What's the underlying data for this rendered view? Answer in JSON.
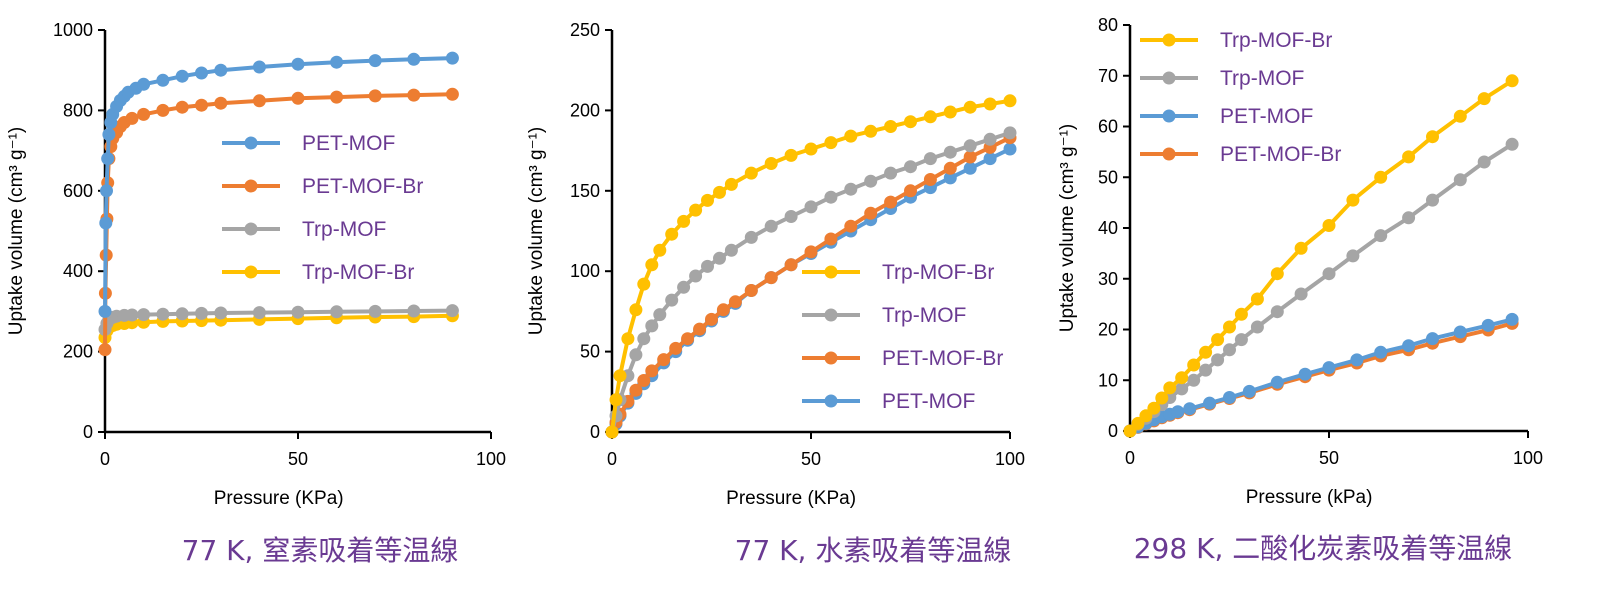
{
  "colors": {
    "pet_mof": "#5b9bd5",
    "pet_mof_br": "#ed7d31",
    "trp_mof": "#a5a5a5",
    "trp_mof_br": "#ffc000",
    "caption": "#6a3a92",
    "legend_text": "#6a3a92"
  },
  "chart_data": [
    {
      "type": "line",
      "caption": "77 K, 窒素吸着等温線",
      "xlabel": "Pressure (KPa)",
      "ylabel": "Uptake volume (cm³ g⁻¹)",
      "xlim": [
        0,
        100
      ],
      "ylim": [
        0,
        1000
      ],
      "xticks": [
        0,
        50,
        100
      ],
      "yticks": [
        0,
        200,
        400,
        600,
        800,
        1000
      ],
      "legend_order": [
        "PET-MOF",
        "PET-MOF-Br",
        "Trp-MOF",
        "Trp-MOF-Br"
      ],
      "series": [
        {
          "name": "PET-MOF",
          "color_key": "pet_mof",
          "x": [
            0,
            0.2,
            0.4,
            0.7,
            1,
            1.5,
            2,
            3,
            4,
            5,
            6,
            8,
            10,
            15,
            20,
            25,
            30,
            40,
            50,
            60,
            70,
            80,
            90
          ],
          "y": [
            300,
            520,
            600,
            680,
            740,
            770,
            790,
            810,
            825,
            835,
            845,
            855,
            865,
            875,
            885,
            893,
            900,
            908,
            915,
            920,
            924,
            927,
            930
          ]
        },
        {
          "name": "PET-MOF-Br",
          "color_key": "pet_mof_br",
          "x": [
            0,
            0.1,
            0.3,
            0.5,
            0.7,
            1,
            1.5,
            2,
            3,
            4,
            5,
            7,
            10,
            15,
            20,
            25,
            30,
            40,
            50,
            60,
            70,
            80,
            90
          ],
          "y": [
            205,
            345,
            440,
            530,
            620,
            680,
            710,
            730,
            745,
            760,
            770,
            780,
            790,
            800,
            808,
            813,
            818,
            824,
            830,
            833,
            836,
            838,
            840
          ]
        },
        {
          "name": "Trp-MOF",
          "color_key": "trp_mof",
          "x": [
            0,
            0.5,
            1,
            2,
            3,
            5,
            7,
            10,
            15,
            20,
            25,
            30,
            40,
            50,
            60,
            70,
            80,
            90
          ],
          "y": [
            255,
            270,
            280,
            285,
            288,
            290,
            291,
            292,
            293,
            294,
            295,
            296,
            297,
            298,
            299,
            300,
            301,
            302
          ]
        },
        {
          "name": "Trp-MOF-Br",
          "color_key": "trp_mof_br",
          "x": [
            0,
            0.5,
            1,
            2,
            3,
            5,
            7,
            10,
            15,
            20,
            25,
            30,
            40,
            50,
            60,
            70,
            80,
            90
          ],
          "y": [
            235,
            252,
            260,
            265,
            268,
            270,
            272,
            273,
            275,
            276,
            277,
            278,
            280,
            282,
            284,
            286,
            287,
            289
          ]
        }
      ]
    },
    {
      "type": "line",
      "caption": "77 K, 水素吸着等温線",
      "xlabel": "Pressure (KPa)",
      "ylabel": "Uptake volume (cm³ g⁻¹)",
      "xlim": [
        0,
        100
      ],
      "ylim": [
        0,
        250
      ],
      "xticks": [
        0,
        50,
        100
      ],
      "yticks": [
        0,
        50,
        100,
        150,
        200,
        250
      ],
      "legend_order": [
        "Trp-MOF-Br",
        "Trp-MOF",
        "PET-MOF-Br",
        "PET-MOF"
      ],
      "series": [
        {
          "name": "Trp-MOF-Br",
          "color_key": "trp_mof_br",
          "x": [
            0,
            1,
            2,
            4,
            6,
            8,
            10,
            12,
            15,
            18,
            21,
            24,
            27,
            30,
            35,
            40,
            45,
            50,
            55,
            60,
            65,
            70,
            75,
            80,
            85,
            90,
            95,
            100
          ],
          "y": [
            0,
            20,
            35,
            58,
            76,
            92,
            104,
            113,
            123,
            131,
            138,
            144,
            149,
            154,
            161,
            167,
            172,
            176,
            180,
            184,
            187,
            190,
            193,
            196,
            199,
            202,
            204,
            206
          ]
        },
        {
          "name": "Trp-MOF",
          "color_key": "trp_mof",
          "x": [
            0,
            1,
            2,
            4,
            6,
            8,
            10,
            12,
            15,
            18,
            21,
            24,
            27,
            30,
            35,
            40,
            45,
            50,
            55,
            60,
            65,
            70,
            75,
            80,
            85,
            90,
            95,
            100
          ],
          "y": [
            0,
            10,
            20,
            35,
            48,
            58,
            66,
            73,
            82,
            90,
            97,
            103,
            108,
            113,
            121,
            128,
            134,
            140,
            146,
            151,
            156,
            161,
            165,
            170,
            174,
            178,
            182,
            186
          ]
        },
        {
          "name": "PET-MOF-Br",
          "color_key": "pet_mof_br",
          "x": [
            0,
            1,
            2,
            4,
            6,
            8,
            10,
            13,
            16,
            19,
            22,
            25,
            28,
            31,
            35,
            40,
            45,
            50,
            55,
            60,
            65,
            70,
            75,
            80,
            85,
            90,
            95,
            100
          ],
          "y": [
            0,
            6,
            11,
            19,
            26,
            32,
            38,
            45,
            52,
            58,
            64,
            70,
            76,
            81,
            88,
            96,
            104,
            112,
            120,
            128,
            136,
            143,
            150,
            157,
            164,
            171,
            177,
            183
          ]
        },
        {
          "name": "PET-MOF",
          "color_key": "pet_mof",
          "x": [
            0,
            1,
            2,
            4,
            6,
            8,
            10,
            13,
            16,
            19,
            22,
            25,
            28,
            31,
            35,
            40,
            45,
            50,
            55,
            60,
            65,
            70,
            75,
            80,
            85,
            90,
            95,
            100
          ],
          "y": [
            0,
            5,
            10,
            18,
            24,
            30,
            35,
            43,
            50,
            57,
            63,
            69,
            75,
            80,
            88,
            96,
            104,
            111,
            118,
            125,
            132,
            139,
            146,
            152,
            158,
            164,
            170,
            176
          ]
        }
      ]
    },
    {
      "type": "line",
      "caption": "298 K, 二酸化炭素吸着等温線",
      "xlabel": "Pressure (kPa)",
      "ylabel": "Uptake volume (cm³ g⁻¹)",
      "xlim": [
        0,
        100
      ],
      "ylim": [
        0,
        80
      ],
      "xticks": [
        0,
        50,
        100
      ],
      "yticks": [
        0,
        10,
        20,
        30,
        40,
        50,
        60,
        70,
        80
      ],
      "legend_order": [
        "Trp-MOF-Br",
        "Trp-MOF",
        "PET-MOF",
        "PET-MOF-Br"
      ],
      "series": [
        {
          "name": "Trp-MOF-Br",
          "color_key": "trp_mof_br",
          "x": [
            0,
            2,
            4,
            6,
            8,
            10,
            13,
            16,
            19,
            22,
            25,
            28,
            32,
            37,
            43,
            50,
            56,
            63,
            70,
            76,
            83,
            89,
            96
          ],
          "y": [
            0,
            1.5,
            3,
            4.5,
            6.5,
            8.5,
            10.5,
            13,
            15.5,
            18,
            20.5,
            23,
            26,
            31,
            36,
            40.5,
            45.5,
            50,
            54,
            58,
            62,
            65.5,
            69
          ]
        },
        {
          "name": "Trp-MOF",
          "color_key": "trp_mof",
          "x": [
            0,
            2,
            4,
            6,
            8,
            10,
            13,
            16,
            19,
            22,
            25,
            28,
            32,
            37,
            43,
            50,
            56,
            63,
            70,
            76,
            83,
            89,
            96
          ],
          "y": [
            0,
            1.3,
            2.5,
            3.8,
            5.2,
            6.6,
            8.3,
            10,
            12,
            14,
            16,
            18,
            20.5,
            23.5,
            27,
            31,
            34.5,
            38.5,
            42,
            45.5,
            49.5,
            53,
            56.5
          ]
        },
        {
          "name": "PET-MOF",
          "color_key": "pet_mof",
          "x": [
            0,
            2,
            4,
            6,
            8,
            10,
            12,
            15,
            20,
            25,
            30,
            37,
            44,
            50,
            57,
            63,
            70,
            76,
            83,
            90,
            96
          ],
          "y": [
            0,
            0.8,
            1.5,
            2.2,
            2.8,
            3.3,
            3.8,
            4.4,
            5.5,
            6.6,
            7.8,
            9.6,
            11.2,
            12.5,
            14,
            15.5,
            16.8,
            18.2,
            19.5,
            20.8,
            22
          ]
        },
        {
          "name": "PET-MOF-Br",
          "color_key": "pet_mof_br",
          "x": [
            0,
            2,
            4,
            6,
            8,
            10,
            12,
            15,
            20,
            25,
            30,
            37,
            44,
            50,
            57,
            63,
            70,
            76,
            83,
            90,
            96
          ],
          "y": [
            0,
            0.7,
            1.4,
            2,
            2.6,
            3.1,
            3.6,
            4.2,
            5.3,
            6.4,
            7.5,
            9.2,
            10.7,
            12,
            13.4,
            14.8,
            16,
            17.3,
            18.6,
            19.9,
            21.2
          ]
        }
      ]
    }
  ]
}
